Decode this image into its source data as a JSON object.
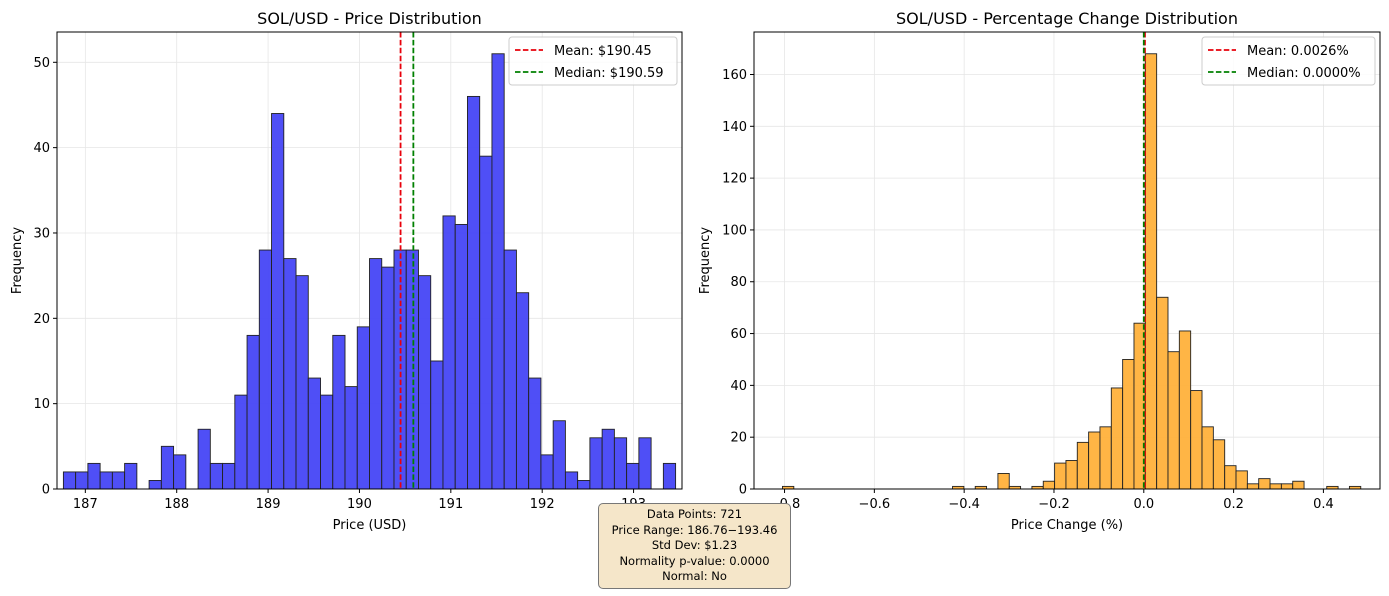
{
  "stats_box": {
    "line1": "Data Points: 721",
    "line2": "Price Range: 186.76−193.46",
    "line3": "Std Dev: $1.23",
    "line4": "Normality p-value: 0.0000",
    "line5": "Normal: No"
  },
  "chart_data": [
    {
      "type": "bar",
      "title": "SOL/USD - Price Distribution",
      "xlabel": "Price (USD)",
      "ylabel": "Frequency",
      "xlim": [
        186.69,
        193.53
      ],
      "ylim": [
        0,
        53.55
      ],
      "bin_start": 186.76,
      "bin_width": 0.134,
      "values": [
        2,
        2,
        3,
        2,
        2,
        3,
        0,
        1,
        5,
        4,
        0,
        7,
        3,
        3,
        11,
        18,
        28,
        44,
        27,
        25,
        13,
        11,
        18,
        12,
        19,
        27,
        26,
        28,
        28,
        25,
        15,
        32,
        31,
        46,
        39,
        51,
        28,
        23,
        13,
        4,
        8,
        2,
        1,
        6,
        7,
        6,
        3,
        6,
        0,
        3
      ],
      "xticks": [
        187,
        188,
        189,
        190,
        191,
        192,
        193
      ],
      "xtick_labels": [
        "187",
        "188",
        "189",
        "190",
        "191",
        "192",
        "193"
      ],
      "yticks": [
        0,
        10,
        20,
        30,
        40,
        50
      ],
      "ytick_labels": [
        "0",
        "10",
        "20",
        "30",
        "40",
        "50"
      ],
      "bar_color": "#4646f5",
      "vlines": [
        {
          "label": "Mean: $190.45",
          "x": 190.45,
          "color": "#e8000b"
        },
        {
          "label": "Median: $190.59",
          "x": 190.59,
          "color": "#008000"
        }
      ],
      "legend": "top-right",
      "grid": true
    },
    {
      "type": "bar",
      "title": "SOL/USD - Percentage Change Distribution",
      "xlabel": "Price Change (%)",
      "ylabel": "Frequency",
      "xlim": [
        -0.868,
        0.526
      ],
      "ylim": [
        0,
        176.4
      ],
      "bin_start": -0.8046,
      "bin_width": 0.02525,
      "values": [
        1,
        0,
        0,
        0,
        0,
        0,
        0,
        0,
        0,
        0,
        0,
        0,
        0,
        0,
        0,
        1,
        0,
        1,
        0,
        6,
        1,
        0,
        1,
        3,
        10,
        11,
        18,
        22,
        24,
        39,
        50,
        64,
        168,
        74,
        53,
        61,
        38,
        24,
        19,
        9,
        7,
        2,
        4,
        2,
        2,
        3,
        0,
        0,
        1,
        0,
        1
      ],
      "xticks": [
        -0.8,
        -0.6,
        -0.4,
        -0.2,
        0.0,
        0.2,
        0.4
      ],
      "xtick_labels": [
        "−0.8",
        "−0.6",
        "−0.4",
        "−0.2",
        "0.0",
        "0.2",
        "0.4"
      ],
      "yticks": [
        0,
        20,
        40,
        60,
        80,
        100,
        120,
        140,
        160
      ],
      "ytick_labels": [
        "0",
        "20",
        "40",
        "60",
        "80",
        "100",
        "120",
        "140",
        "160"
      ],
      "bar_color": "#ffb13b",
      "vlines": [
        {
          "label": "Mean: 0.0026%",
          "x": 0.0026,
          "color": "#e8000b"
        },
        {
          "label": "Median: 0.0000%",
          "x": 0.0,
          "color": "#008000"
        }
      ],
      "legend": "top-right",
      "grid": true
    }
  ]
}
